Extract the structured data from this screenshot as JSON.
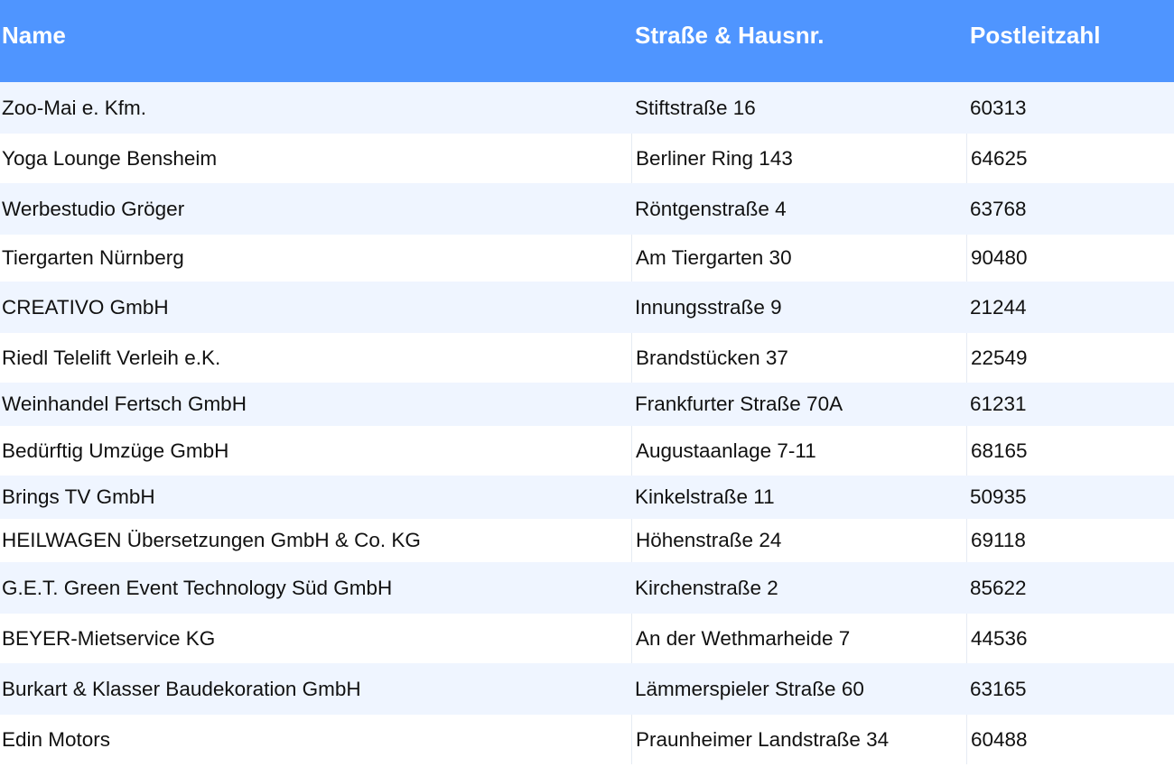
{
  "table": {
    "headers": [
      "Name",
      "Straße & Hausnr.",
      "Postleitzahl"
    ],
    "rows": [
      [
        "Zoo-Mai e. Kfm.",
        "Stiftstraße 16",
        "60313"
      ],
      [
        "Yoga Lounge Bensheim",
        "Berliner Ring 143",
        "64625"
      ],
      [
        "Werbestudio Gröger",
        "Röntgenstraße 4",
        "63768"
      ],
      [
        "Tiergarten Nürnberg",
        "Am Tiergarten 30",
        "90480"
      ],
      [
        "CREATIVO GmbH",
        "Innungsstraße 9",
        "21244"
      ],
      [
        "Riedl Telelift Verleih e.K.",
        "Brandstücken 37",
        "22549"
      ],
      [
        "Weinhandel Fertsch GmbH",
        "Frankfurter Straße 70A",
        "61231"
      ],
      [
        "Bedürftig Umzüge GmbH",
        "Augustaanlage 7-11",
        "68165"
      ],
      [
        "Brings TV GmbH",
        "Kinkelstraße 11",
        "50935"
      ],
      [
        "HEILWAGEN Übersetzungen GmbH & Co. KG",
        "Höhenstraße 24",
        "69118"
      ],
      [
        "G.E.T. Green Event Technology Süd GmbH",
        "Kirchenstraße 2",
        "85622"
      ],
      [
        "BEYER-Mietservice KG",
        "An der Wethmarheide 7",
        "44536"
      ],
      [
        "Burkart & Klasser Baudekoration GmbH",
        "Lämmerspieler Straße 60",
        "63165"
      ],
      [
        "Edin Motors",
        "Praunheimer Landstraße 34",
        "60488"
      ]
    ]
  },
  "colors": {
    "header_bg": "#4f95ff",
    "header_text": "#ffffff",
    "row_alt_bg": "#eff5ff"
  }
}
